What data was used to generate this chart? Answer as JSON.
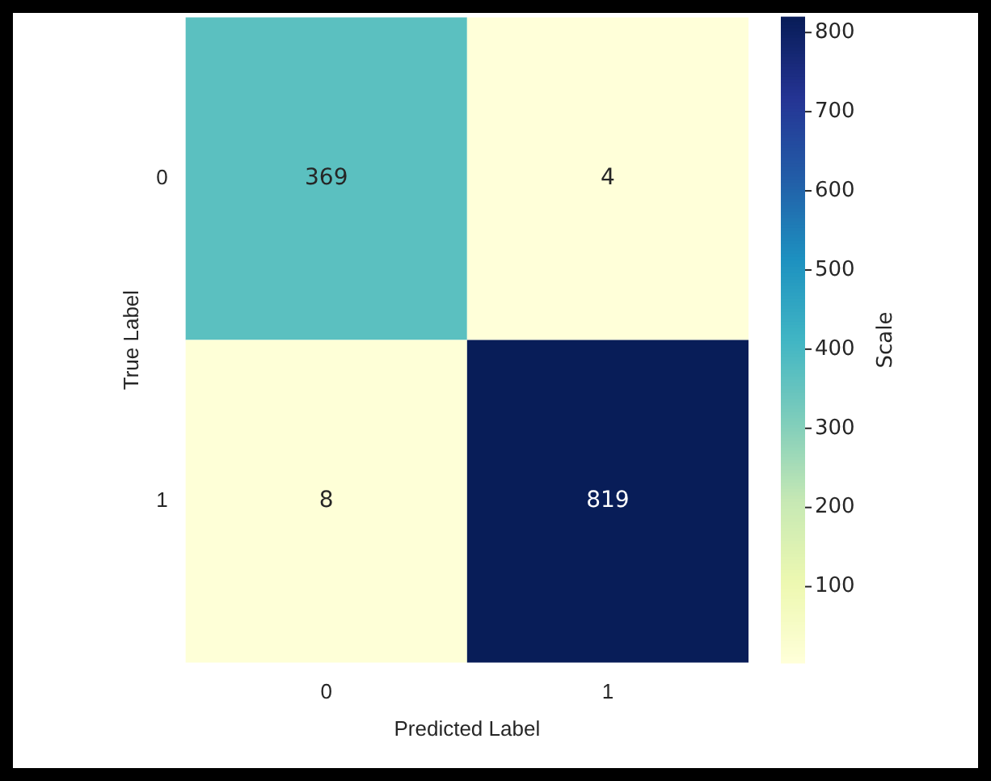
{
  "chart_data": {
    "type": "heatmap",
    "xlabel": "Predicted Label",
    "ylabel": "True Label",
    "clabel": "Scale",
    "categories": [
      "0",
      "1"
    ],
    "y_categories": [
      "0",
      "1"
    ],
    "cells": [
      [
        369,
        4
      ],
      [
        8,
        819
      ]
    ],
    "clim": [
      4,
      819
    ],
    "cticks": [
      100,
      200,
      300,
      400,
      500,
      600,
      700,
      800
    ],
    "data_labels": true
  }
}
